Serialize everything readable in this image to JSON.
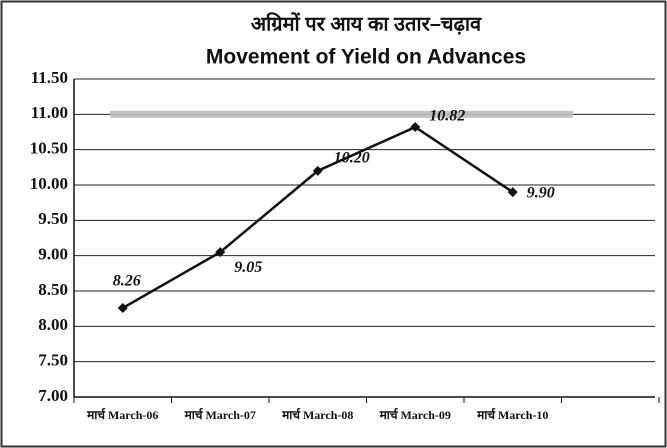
{
  "chart_data": {
    "type": "line",
    "title": "अग्रिमों पर आय का उतार–चढ़ाव",
    "subtitle": "Movement of Yield on Advances",
    "categories": [
      "मार्च March-06",
      "मार्च March-07",
      "मार्च March-08",
      "मार्च March-09",
      "मार्च March-10"
    ],
    "values": [
      8.26,
      9.05,
      10.2,
      10.82,
      9.9
    ],
    "value_labels": [
      "8.26",
      "9.05",
      "10.20",
      "10.82",
      "9.90"
    ],
    "color": "#111111",
    "ylim": [
      7,
      11.5
    ],
    "yticks": [
      {
        "value": 7,
        "label": "7.00"
      },
      {
        "value": 7.5,
        "label": "7.50"
      },
      {
        "value": 8,
        "label": "8.00"
      },
      {
        "value": 8.5,
        "label": "8.50"
      },
      {
        "value": 9,
        "label": "9.00"
      },
      {
        "value": 9.5,
        "label": "9.50"
      },
      {
        "value": 10,
        "label": "10.00"
      },
      {
        "value": 10.5,
        "label": "10.50"
      },
      {
        "value": 11,
        "label": "11.00"
      },
      {
        "value": 11.5,
        "label": "11.50"
      }
    ],
    "grid": true
  }
}
